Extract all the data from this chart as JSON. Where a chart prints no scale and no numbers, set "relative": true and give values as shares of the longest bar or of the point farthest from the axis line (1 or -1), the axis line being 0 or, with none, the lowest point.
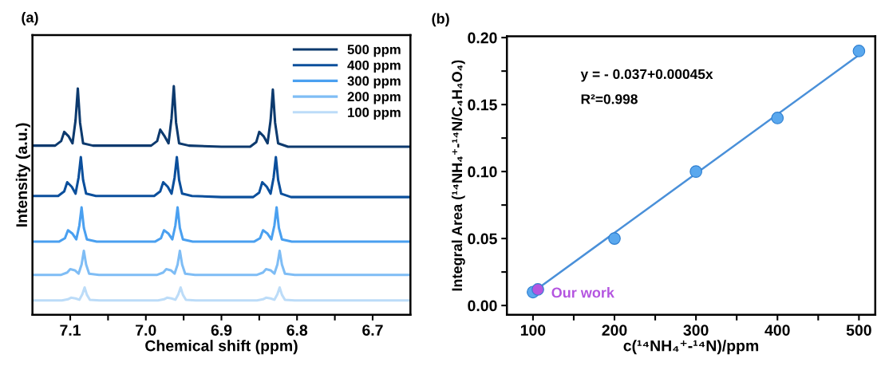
{
  "chart_data": [
    {
      "type": "line",
      "title": "(a)",
      "xlabel": "Chemical shift (ppm)",
      "ylabel": "Intensity (a.u.)",
      "relative": true,
      "tick_labels": "x",
      "legend": "top right",
      "grid": false,
      "xlim": [
        7.15,
        6.65
      ],
      "xticks": [
        {
          "value": 7.1,
          "label": "7.1"
        },
        {
          "value": 7.05,
          "label": null
        },
        {
          "value": 7.0,
          "label": "7.0"
        },
        {
          "value": 6.95,
          "label": null
        },
        {
          "value": 6.9,
          "label": "6.9"
        },
        {
          "value": 6.85,
          "label": null
        },
        {
          "value": 6.8,
          "label": "6.8"
        },
        {
          "value": 6.75,
          "label": null
        },
        {
          "value": 6.7,
          "label": "6.7"
        }
      ],
      "series": [
        {
          "name": "500 ppm",
          "color": "#0d3a6e",
          "x": [
            7.15,
            7.12,
            7.112,
            7.108,
            7.102,
            7.097,
            7.093,
            7.09,
            7.087,
            7.083,
            7.07,
            7.03,
            6.993,
            6.985,
            6.981,
            6.975,
            6.97,
            6.966,
            6.963,
            6.96,
            6.956,
            6.943,
            6.9,
            6.862,
            6.854,
            6.85,
            6.844,
            6.839,
            6.835,
            6.832,
            6.829,
            6.825,
            6.812,
            6.75,
            6.65
          ],
          "values": [
            0.74,
            0.74,
            0.76,
            0.8,
            0.78,
            0.75,
            0.85,
            0.99,
            0.84,
            0.75,
            0.74,
            0.74,
            0.74,
            0.76,
            0.81,
            0.78,
            0.75,
            0.86,
            1.0,
            0.84,
            0.75,
            0.74,
            0.735,
            0.735,
            0.755,
            0.8,
            0.78,
            0.75,
            0.85,
            0.985,
            0.84,
            0.75,
            0.735,
            0.735,
            0.735
          ]
        },
        {
          "name": "400 ppm",
          "color": "#0b4f9c",
          "x": [
            7.15,
            7.116,
            7.108,
            7.104,
            7.098,
            7.093,
            7.089,
            7.086,
            7.083,
            7.079,
            7.066,
            7.03,
            6.989,
            6.981,
            6.977,
            6.971,
            6.966,
            6.962,
            6.959,
            6.956,
            6.952,
            6.939,
            6.9,
            6.858,
            6.85,
            6.846,
            6.84,
            6.835,
            6.831,
            6.828,
            6.825,
            6.821,
            6.808,
            6.75,
            6.65
          ],
          "values": [
            0.52,
            0.52,
            0.54,
            0.58,
            0.56,
            0.53,
            0.6,
            0.69,
            0.59,
            0.53,
            0.52,
            0.52,
            0.52,
            0.54,
            0.58,
            0.56,
            0.53,
            0.6,
            0.69,
            0.59,
            0.53,
            0.52,
            0.515,
            0.515,
            0.535,
            0.58,
            0.56,
            0.53,
            0.6,
            0.69,
            0.59,
            0.53,
            0.515,
            0.515,
            0.515
          ]
        },
        {
          "name": "300 ppm",
          "color": "#4aa0f0",
          "x": [
            7.15,
            7.115,
            7.107,
            7.103,
            7.097,
            7.092,
            7.088,
            7.085,
            7.082,
            7.078,
            7.065,
            7.03,
            6.988,
            6.98,
            6.976,
            6.97,
            6.965,
            6.961,
            6.958,
            6.955,
            6.951,
            6.938,
            6.9,
            6.857,
            6.849,
            6.845,
            6.839,
            6.834,
            6.83,
            6.827,
            6.824,
            6.82,
            6.807,
            6.75,
            6.65
          ],
          "values": [
            0.32,
            0.32,
            0.335,
            0.37,
            0.355,
            0.33,
            0.39,
            0.47,
            0.38,
            0.33,
            0.32,
            0.32,
            0.32,
            0.335,
            0.37,
            0.355,
            0.33,
            0.39,
            0.47,
            0.38,
            0.33,
            0.32,
            0.32,
            0.32,
            0.335,
            0.37,
            0.355,
            0.33,
            0.39,
            0.47,
            0.38,
            0.33,
            0.32,
            0.32,
            0.32
          ]
        },
        {
          "name": "200 ppm",
          "color": "#7fbdf5",
          "x": [
            7.15,
            7.112,
            7.104,
            7.1,
            7.094,
            7.089,
            7.085,
            7.082,
            7.079,
            7.075,
            7.062,
            7.03,
            6.985,
            6.977,
            6.973,
            6.967,
            6.962,
            6.958,
            6.955,
            6.952,
            6.948,
            6.935,
            6.9,
            6.853,
            6.845,
            6.841,
            6.835,
            6.83,
            6.826,
            6.823,
            6.82,
            6.816,
            6.803,
            6.75,
            6.65
          ],
          "values": [
            0.175,
            0.175,
            0.185,
            0.2,
            0.195,
            0.18,
            0.22,
            0.28,
            0.22,
            0.18,
            0.175,
            0.175,
            0.175,
            0.185,
            0.2,
            0.195,
            0.18,
            0.22,
            0.28,
            0.22,
            0.18,
            0.175,
            0.175,
            0.175,
            0.185,
            0.2,
            0.195,
            0.18,
            0.22,
            0.28,
            0.22,
            0.18,
            0.175,
            0.175,
            0.175
          ]
        },
        {
          "name": "100 ppm",
          "color": "#bcdcf8",
          "x": [
            7.15,
            7.111,
            7.103,
            7.099,
            7.093,
            7.088,
            7.084,
            7.081,
            7.078,
            7.074,
            7.061,
            7.03,
            6.984,
            6.976,
            6.972,
            6.966,
            6.961,
            6.957,
            6.954,
            6.951,
            6.947,
            6.934,
            6.9,
            6.853,
            6.845,
            6.841,
            6.835,
            6.83,
            6.826,
            6.823,
            6.82,
            6.816,
            6.803,
            6.75,
            6.65
          ],
          "values": [
            0.063,
            0.063,
            0.068,
            0.075,
            0.072,
            0.066,
            0.09,
            0.12,
            0.088,
            0.066,
            0.063,
            0.063,
            0.063,
            0.068,
            0.075,
            0.072,
            0.066,
            0.09,
            0.12,
            0.088,
            0.066,
            0.063,
            0.063,
            0.063,
            0.068,
            0.075,
            0.072,
            0.066,
            0.09,
            0.12,
            0.088,
            0.066,
            0.063,
            0.063,
            0.063
          ]
        }
      ]
    },
    {
      "type": "scatter",
      "title": "(b)",
      "xlabel": "c(¹⁴NH₄⁺-¹⁴N)/ppm",
      "ylabel": "Integral Area (¹⁴NH₄⁺-¹⁴N/C₄H₄O₄)",
      "grid": false,
      "marker": "circle",
      "xlim": [
        68,
        520
      ],
      "xticks": [
        100,
        {
          "value": 150,
          "label": null
        },
        200,
        {
          "value": 250,
          "label": null
        },
        300,
        {
          "value": 350,
          "label": null
        },
        400,
        {
          "value": 450,
          "label": null
        },
        500
      ],
      "ylim": [
        -0.007,
        0.201
      ],
      "yticks": [
        {
          "value": 0,
          "label": "0.00"
        },
        {
          "value": 0.025,
          "label": null
        },
        {
          "value": 0.05,
          "label": "0.05"
        },
        {
          "value": 0.075,
          "label": null
        },
        {
          "value": 0.1,
          "label": "0.10"
        },
        {
          "value": 0.125,
          "label": null
        },
        {
          "value": 0.15,
          "label": "0.15"
        },
        {
          "value": 0.175,
          "label": null
        },
        {
          "value": 0.2,
          "label": "0.20"
        }
      ],
      "annotations": [
        "y = - 0.037+0.00045x",
        "R²=0.998",
        {
          "text": "Our work",
          "x": 106,
          "y": 0.012
        }
      ],
      "series": [
        {
          "type": "line",
          "marker": "none",
          "color": "#4a90d9",
          "x": [
            100,
            500
          ],
          "values": [
            0.01,
            0.187
          ]
        },
        {
          "color": "#5aa8ee",
          "x": [
            100,
            200,
            300,
            400,
            500
          ],
          "values": [
            0.01,
            0.05,
            0.1,
            0.14,
            0.19
          ]
        },
        {
          "color": "#b455e0",
          "x": [
            106
          ],
          "values": [
            0.012
          ]
        }
      ]
    }
  ]
}
